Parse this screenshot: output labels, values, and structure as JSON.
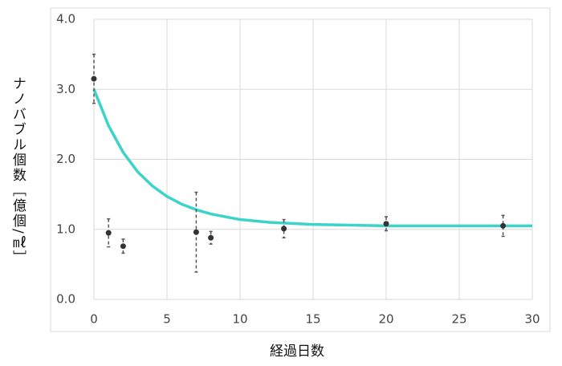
{
  "chart_data": {
    "type": "scatter",
    "x_label": "経過日数",
    "y_label": "ナノバブル個数［億個/㎖］",
    "x": [
      0,
      1,
      2,
      7,
      8,
      13,
      20,
      28
    ],
    "series": [
      {
        "color": "#333333",
        "values": [
          3.15,
          0.95,
          0.76,
          0.96,
          0.88,
          1.01,
          1.08,
          1.05
        ],
        "errors": [
          0.35,
          0.2,
          0.1,
          0.57,
          0.09,
          0.13,
          0.1,
          0.15
        ]
      }
    ],
    "fit": {
      "color": "#3cd3c9",
      "x": [
        0,
        1,
        2,
        3,
        4,
        5,
        6,
        7,
        8,
        10,
        12,
        15,
        20,
        25,
        30
      ],
      "values": [
        3.0,
        2.48,
        2.1,
        1.82,
        1.62,
        1.47,
        1.36,
        1.28,
        1.22,
        1.14,
        1.1,
        1.07,
        1.05,
        1.05,
        1.05
      ]
    },
    "xlim": [
      0,
      30
    ],
    "ylim": [
      0,
      4
    ],
    "xticks": [
      0,
      5,
      10,
      15,
      20,
      25,
      30
    ],
    "yticks": [
      {
        "value": 0,
        "label": "0.0"
      },
      {
        "value": 1,
        "label": "1.0"
      },
      {
        "value": 2,
        "label": "2.0"
      },
      {
        "value": 3,
        "label": "3.0"
      },
      {
        "value": 4,
        "label": "4.0"
      }
    ],
    "grid": true
  }
}
